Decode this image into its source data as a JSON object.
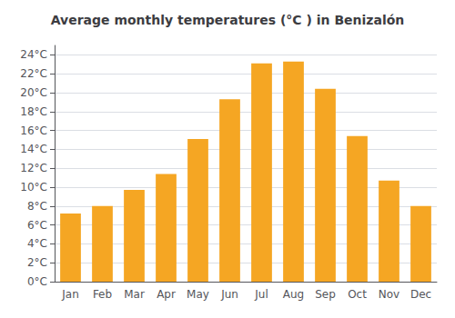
{
  "chart_data": {
    "type": "bar",
    "title": "Average monthly temperatures (°C ) in Benizalón",
    "categories": [
      "Jan",
      "Feb",
      "Mar",
      "Apr",
      "May",
      "Jun",
      "Jul",
      "Aug",
      "Sep",
      "Oct",
      "Nov",
      "Dec"
    ],
    "values": [
      7.2,
      8.0,
      9.7,
      11.4,
      15.1,
      19.3,
      23.1,
      23.3,
      20.4,
      15.4,
      10.7,
      8.0
    ],
    "color": "#F5A623",
    "ylim": [
      0,
      25
    ],
    "yticks": [
      {
        "value": 0,
        "label": "0°C"
      },
      {
        "value": 2,
        "label": "2°C"
      },
      {
        "value": 4,
        "label": "4°C"
      },
      {
        "value": 6,
        "label": "6°C"
      },
      {
        "value": 8,
        "label": "8°C"
      },
      {
        "value": 10,
        "label": "10°C"
      },
      {
        "value": 12,
        "label": "12°C"
      },
      {
        "value": 14,
        "label": "14°C"
      },
      {
        "value": 16,
        "label": "16°C"
      },
      {
        "value": 18,
        "label": "18°C"
      },
      {
        "value": 20,
        "label": "20°C"
      },
      {
        "value": 22,
        "label": "22°C"
      },
      {
        "value": 24,
        "label": "24°C"
      }
    ],
    "grid": true
  }
}
